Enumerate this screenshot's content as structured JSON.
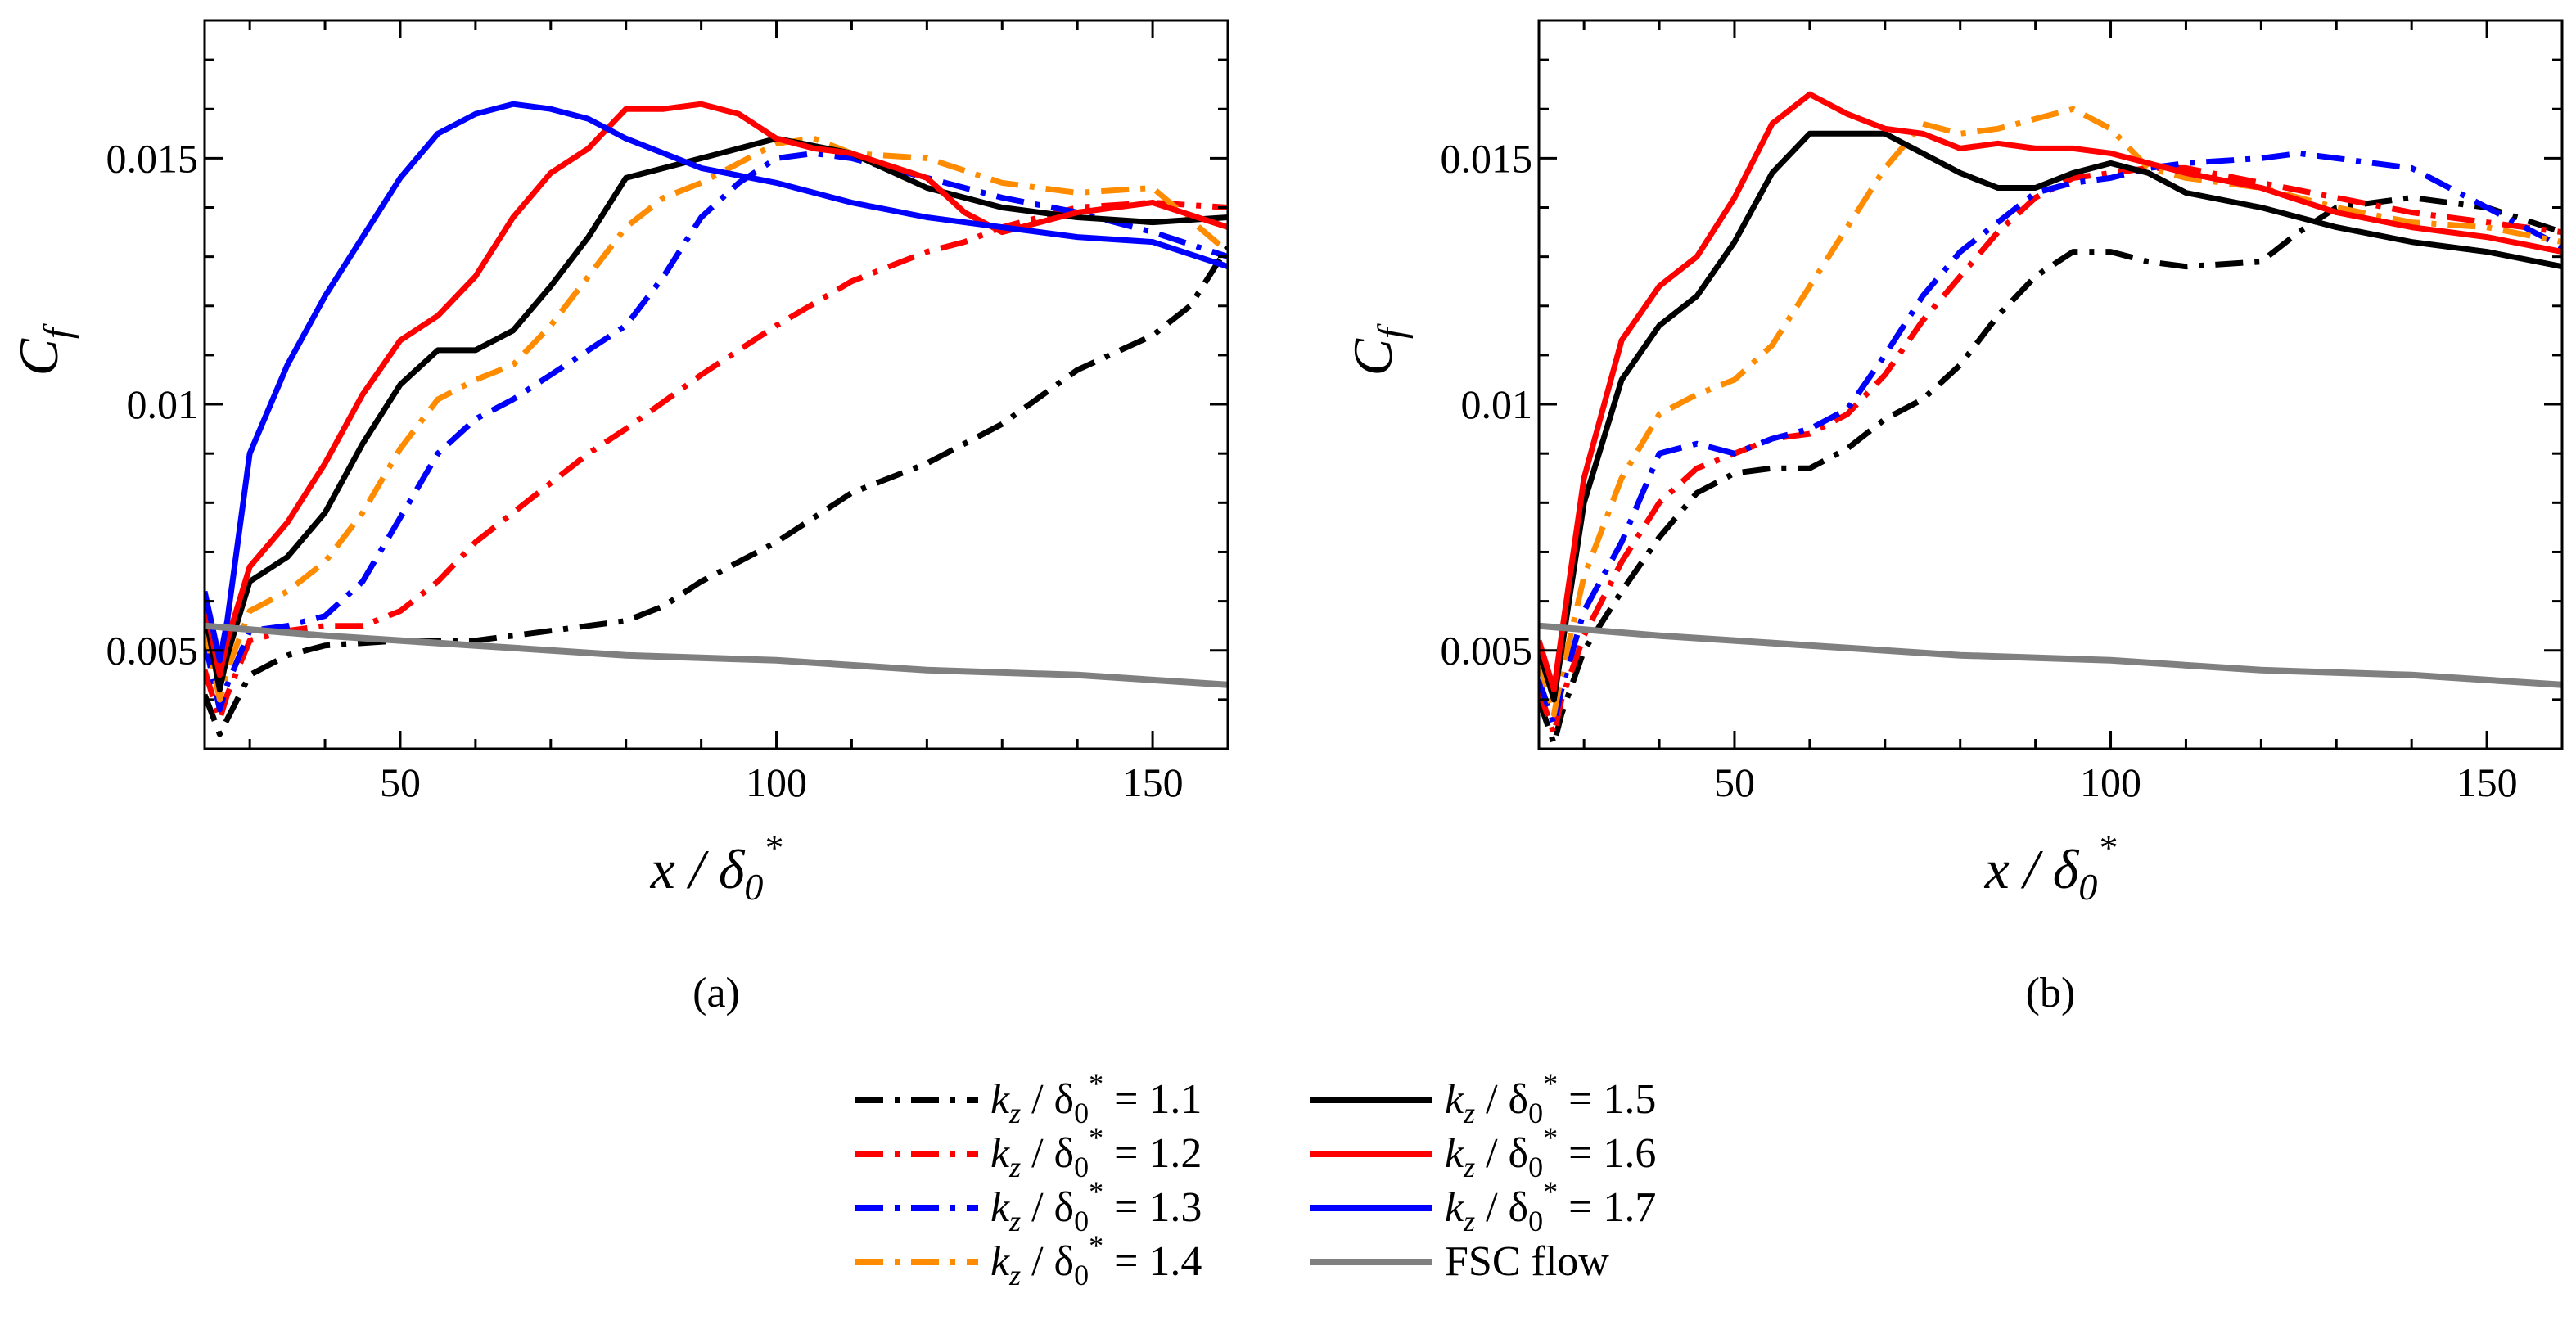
{
  "chart_data": [
    {
      "type": "line",
      "panel": "a",
      "panel_label": "(a)",
      "xlabel": "x / δ0*",
      "ylabel": "Cf",
      "xlim": [
        24,
        160
      ],
      "ylim": [
        0.003,
        0.0178
      ],
      "xticks": [
        50,
        100,
        150
      ],
      "xtick_labels": [
        "50",
        "100",
        "150"
      ],
      "yticks": [
        0.005,
        0.01,
        0.015
      ],
      "ytick_labels": [
        "0.005",
        "0.01",
        "0.015"
      ],
      "grid": false,
      "series": [
        {
          "key": "kz11",
          "x": [
            24,
            26,
            27,
            30,
            35,
            40,
            50,
            60,
            70,
            80,
            85,
            90,
            100,
            110,
            120,
            130,
            140,
            150,
            155,
            160
          ],
          "y": [
            0.0041,
            0.0033,
            0.0036,
            0.0045,
            0.0049,
            0.0051,
            0.0052,
            0.0052,
            0.0054,
            0.0056,
            0.0059,
            0.0064,
            0.0072,
            0.0082,
            0.0088,
            0.0096,
            0.0107,
            0.0114,
            0.012,
            0.0132
          ]
        },
        {
          "key": "kz12",
          "x": [
            24,
            26,
            27,
            30,
            35,
            40,
            45,
            50,
            55,
            60,
            65,
            70,
            75,
            80,
            90,
            100,
            110,
            120,
            125,
            130,
            140,
            150,
            160
          ],
          "y": [
            0.0046,
            0.0036,
            0.0041,
            0.0052,
            0.0054,
            0.0055,
            0.0055,
            0.0058,
            0.0064,
            0.0072,
            0.0078,
            0.0084,
            0.009,
            0.0095,
            0.0106,
            0.0116,
            0.0125,
            0.0131,
            0.0133,
            0.0136,
            0.014,
            0.0141,
            0.014
          ]
        },
        {
          "key": "kz13",
          "x": [
            24,
            26,
            27,
            30,
            35,
            40,
            45,
            50,
            55,
            60,
            65,
            70,
            75,
            80,
            85,
            90,
            95,
            100,
            105,
            110,
            120,
            130,
            140,
            150,
            160
          ],
          "y": [
            0.0052,
            0.0038,
            0.0043,
            0.0054,
            0.0055,
            0.0057,
            0.0064,
            0.0077,
            0.009,
            0.0097,
            0.0101,
            0.0106,
            0.0111,
            0.0116,
            0.0126,
            0.0138,
            0.0145,
            0.015,
            0.0151,
            0.015,
            0.0146,
            0.0142,
            0.0139,
            0.0135,
            0.013
          ]
        },
        {
          "key": "kz14",
          "x": [
            24,
            26,
            27,
            30,
            35,
            40,
            45,
            50,
            55,
            60,
            65,
            70,
            75,
            80,
            85,
            90,
            95,
            100,
            105,
            110,
            120,
            130,
            140,
            150,
            160
          ],
          "y": [
            0.0055,
            0.004,
            0.0046,
            0.0058,
            0.0062,
            0.0068,
            0.0078,
            0.0091,
            0.0101,
            0.0105,
            0.0108,
            0.0116,
            0.0126,
            0.0136,
            0.0142,
            0.0145,
            0.0149,
            0.0153,
            0.0154,
            0.0151,
            0.015,
            0.0145,
            0.0143,
            0.0144,
            0.0131
          ]
        },
        {
          "key": "kz15",
          "x": [
            24,
            26,
            27,
            30,
            35,
            40,
            45,
            50,
            55,
            60,
            65,
            70,
            75,
            80,
            85,
            90,
            95,
            100,
            110,
            120,
            130,
            140,
            150,
            160
          ],
          "y": [
            0.0058,
            0.0042,
            0.0049,
            0.0064,
            0.0069,
            0.0078,
            0.0092,
            0.0104,
            0.0111,
            0.0111,
            0.0115,
            0.0124,
            0.0134,
            0.0146,
            0.0148,
            0.015,
            0.0152,
            0.0154,
            0.0151,
            0.0144,
            0.014,
            0.0138,
            0.0137,
            0.0138
          ]
        },
        {
          "key": "kz16",
          "x": [
            24,
            26,
            27,
            30,
            35,
            40,
            45,
            50,
            55,
            60,
            65,
            70,
            75,
            80,
            85,
            90,
            95,
            100,
            105,
            110,
            120,
            125,
            130,
            140,
            150,
            160
          ],
          "y": [
            0.006,
            0.0045,
            0.0052,
            0.0067,
            0.0076,
            0.0088,
            0.0102,
            0.0113,
            0.0118,
            0.0126,
            0.0138,
            0.0147,
            0.0152,
            0.016,
            0.016,
            0.0161,
            0.0159,
            0.0154,
            0.0152,
            0.0151,
            0.0146,
            0.0139,
            0.0135,
            0.0139,
            0.0141,
            0.0136
          ]
        },
        {
          "key": "kz17",
          "x": [
            24,
            26,
            27,
            30,
            35,
            40,
            45,
            50,
            55,
            60,
            65,
            70,
            75,
            80,
            90,
            100,
            110,
            120,
            130,
            140,
            150,
            160
          ],
          "y": [
            0.0062,
            0.0048,
            0.0056,
            0.009,
            0.0108,
            0.0122,
            0.0134,
            0.0146,
            0.0155,
            0.0159,
            0.0161,
            0.016,
            0.0158,
            0.0154,
            0.0148,
            0.0145,
            0.0141,
            0.0138,
            0.0136,
            0.0134,
            0.0133,
            0.0128
          ]
        },
        {
          "key": "fsc",
          "x": [
            24,
            40,
            60,
            80,
            100,
            120,
            140,
            160
          ],
          "y": [
            0.0055,
            0.0053,
            0.0051,
            0.0049,
            0.0048,
            0.0046,
            0.0045,
            0.0043
          ]
        }
      ]
    },
    {
      "type": "line",
      "panel": "b",
      "panel_label": "(b)",
      "xlabel": "x / δ0*",
      "ylabel": "Cf",
      "xlim": [
        24,
        160
      ],
      "ylim": [
        0.003,
        0.0178
      ],
      "xticks": [
        50,
        100,
        150
      ],
      "xtick_labels": [
        "50",
        "100",
        "150"
      ],
      "yticks": [
        0.005,
        0.01,
        0.015
      ],
      "ytick_labels": [
        "0.005",
        "0.01",
        "0.015"
      ],
      "grid": false,
      "series": [
        {
          "key": "kz11",
          "x": [
            24,
            26,
            27,
            30,
            35,
            40,
            45,
            50,
            55,
            60,
            65,
            70,
            75,
            80,
            85,
            90,
            95,
            100,
            105,
            110,
            120,
            125,
            130,
            140,
            150,
            160
          ],
          "y": [
            0.004,
            0.0031,
            0.0037,
            0.005,
            0.0062,
            0.0073,
            0.0082,
            0.0086,
            0.0087,
            0.0087,
            0.0091,
            0.0097,
            0.0101,
            0.0108,
            0.0118,
            0.0126,
            0.0131,
            0.0131,
            0.0129,
            0.0128,
            0.0129,
            0.0135,
            0.014,
            0.0142,
            0.014,
            0.0135
          ]
        },
        {
          "key": "kz12",
          "x": [
            24,
            26,
            27,
            30,
            35,
            40,
            45,
            50,
            55,
            60,
            65,
            70,
            75,
            80,
            85,
            90,
            95,
            100,
            105,
            110,
            120,
            130,
            140,
            150,
            160
          ],
          "y": [
            0.0042,
            0.0033,
            0.004,
            0.0053,
            0.0068,
            0.008,
            0.0087,
            0.009,
            0.0093,
            0.0094,
            0.0098,
            0.0106,
            0.0117,
            0.0126,
            0.0135,
            0.0142,
            0.0146,
            0.0147,
            0.0148,
            0.0148,
            0.0145,
            0.0142,
            0.0139,
            0.0137,
            0.0135
          ]
        },
        {
          "key": "kz13",
          "x": [
            24,
            26,
            27,
            30,
            35,
            40,
            45,
            50,
            55,
            60,
            65,
            70,
            75,
            80,
            85,
            90,
            95,
            100,
            105,
            110,
            120,
            125,
            130,
            140,
            150,
            160
          ],
          "y": [
            0.0044,
            0.0035,
            0.0042,
            0.0058,
            0.0072,
            0.009,
            0.0092,
            0.009,
            0.0093,
            0.0095,
            0.0099,
            0.011,
            0.0122,
            0.0131,
            0.0137,
            0.0143,
            0.0145,
            0.0146,
            0.0148,
            0.0149,
            0.015,
            0.0151,
            0.015,
            0.0148,
            0.014,
            0.0132
          ]
        },
        {
          "key": "kz14",
          "x": [
            24,
            26,
            27,
            30,
            35,
            40,
            45,
            50,
            55,
            60,
            65,
            70,
            75,
            80,
            85,
            90,
            95,
            100,
            105,
            110,
            120,
            130,
            140,
            150,
            160
          ],
          "y": [
            0.0048,
            0.0037,
            0.0045,
            0.0065,
            0.0085,
            0.0098,
            0.0102,
            0.0105,
            0.0112,
            0.0124,
            0.0136,
            0.0148,
            0.0157,
            0.0155,
            0.0156,
            0.0158,
            0.016,
            0.0156,
            0.0148,
            0.0146,
            0.0144,
            0.014,
            0.0137,
            0.0136,
            0.0133
          ]
        },
        {
          "key": "kz15",
          "x": [
            24,
            26,
            27,
            30,
            35,
            40,
            45,
            50,
            55,
            60,
            65,
            70,
            75,
            80,
            85,
            90,
            95,
            100,
            105,
            110,
            120,
            130,
            140,
            150,
            160
          ],
          "y": [
            0.005,
            0.004,
            0.005,
            0.008,
            0.0105,
            0.0116,
            0.0122,
            0.0133,
            0.0147,
            0.0155,
            0.0155,
            0.0155,
            0.0151,
            0.0147,
            0.0144,
            0.0144,
            0.0147,
            0.0149,
            0.0147,
            0.0143,
            0.014,
            0.0136,
            0.0133,
            0.0131,
            0.0128
          ]
        },
        {
          "key": "kz16",
          "x": [
            24,
            26,
            27,
            30,
            35,
            40,
            45,
            50,
            55,
            60,
            65,
            70,
            75,
            80,
            85,
            90,
            95,
            100,
            105,
            110,
            120,
            130,
            140,
            150,
            160
          ],
          "y": [
            0.0052,
            0.0042,
            0.0053,
            0.0085,
            0.0113,
            0.0124,
            0.013,
            0.0142,
            0.0157,
            0.0163,
            0.0159,
            0.0156,
            0.0155,
            0.0152,
            0.0153,
            0.0152,
            0.0152,
            0.0151,
            0.0149,
            0.0147,
            0.0144,
            0.0139,
            0.0136,
            0.0134,
            0.0131
          ]
        },
        {
          "key": "fsc",
          "x": [
            24,
            40,
            60,
            80,
            100,
            120,
            140,
            160
          ],
          "y": [
            0.0055,
            0.0053,
            0.0051,
            0.0049,
            0.0048,
            0.0046,
            0.0045,
            0.0043
          ]
        }
      ]
    }
  ],
  "legend": [
    {
      "key": "kz11",
      "prefix": "k",
      "sub": "z",
      "mid": " / δ",
      "sub2": "0",
      "sup": "*",
      "value": " = 1.1",
      "color": "#000000",
      "dash": "dashdot"
    },
    {
      "key": "kz12",
      "prefix": "k",
      "sub": "z",
      "mid": " / δ",
      "sub2": "0",
      "sup": "*",
      "value": " = 1.2",
      "color": "#ff0000",
      "dash": "dashdot"
    },
    {
      "key": "kz13",
      "prefix": "k",
      "sub": "z",
      "mid": " / δ",
      "sub2": "0",
      "sup": "*",
      "value": " = 1.3",
      "color": "#0000ff",
      "dash": "dashdot"
    },
    {
      "key": "kz14",
      "prefix": "k",
      "sub": "z",
      "mid": " / δ",
      "sub2": "0",
      "sup": "*",
      "value": " = 1.4",
      "color": "#ff8c00",
      "dash": "dashdot"
    },
    {
      "key": "kz15",
      "prefix": "k",
      "sub": "z",
      "mid": " / δ",
      "sub2": "0",
      "sup": "*",
      "value": " = 1.5",
      "color": "#000000",
      "dash": "solid"
    },
    {
      "key": "kz16",
      "prefix": "k",
      "sub": "z",
      "mid": " / δ",
      "sub2": "0",
      "sup": "*",
      "value": " = 1.6",
      "color": "#ff0000",
      "dash": "solid"
    },
    {
      "key": "kz17",
      "prefix": "k",
      "sub": "z",
      "mid": " / δ",
      "sub2": "0",
      "sup": "*",
      "value": " = 1.7",
      "color": "#0000ff",
      "dash": "solid"
    },
    {
      "key": "fsc",
      "label": "FSC flow",
      "color": "#808080",
      "dash": "solid"
    }
  ]
}
